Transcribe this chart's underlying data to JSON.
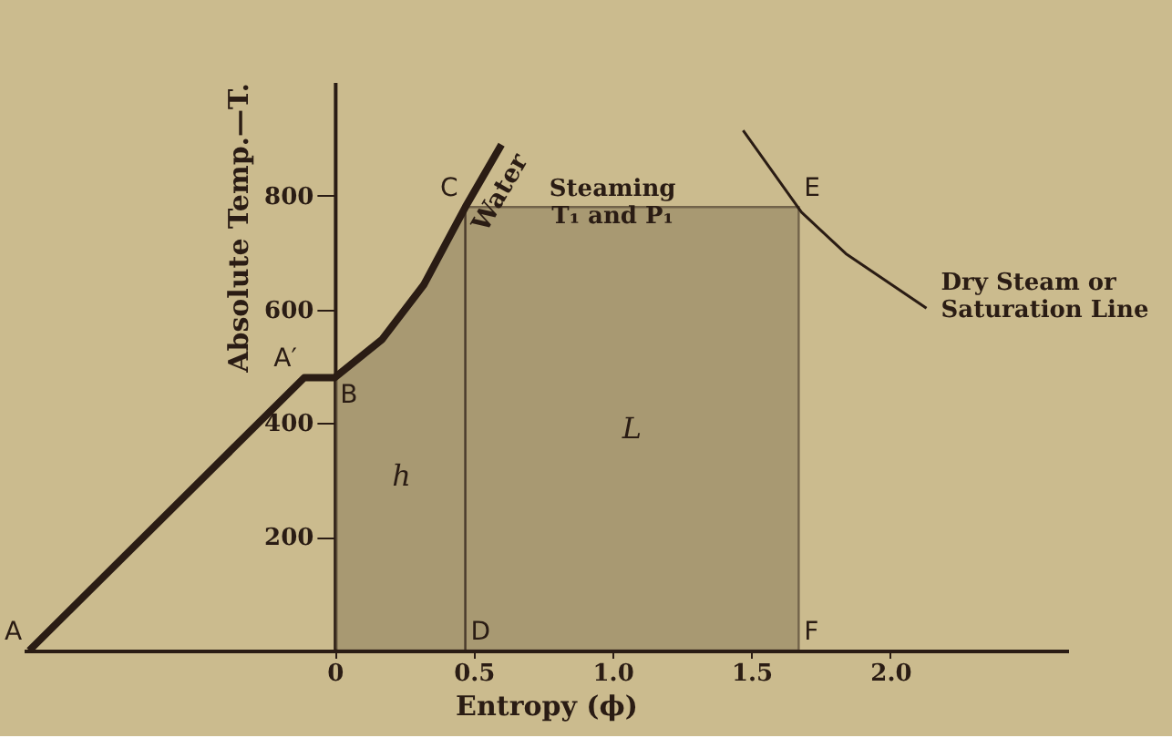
{
  "chart_data": {
    "type": "line",
    "xlabel": "Entropy (ϕ)",
    "ylabel": "Absolute Temp.—T.",
    "xlim": [
      -1.12,
      2.64
    ],
    "ylim": [
      0,
      1000
    ],
    "xticks": [
      {
        "value": 0,
        "label": "0"
      },
      0.5,
      {
        "value": 1,
        "label": "1.0"
      },
      1.5,
      {
        "value": 2,
        "label": "2.0"
      }
    ],
    "yticks": [
      200,
      400,
      600,
      800
    ],
    "grid": false,
    "marker": "none",
    "line_style": "solid",
    "series": [
      {
        "name": "h",
        "type": "area",
        "color": "#8c7e5c",
        "x": [
          0,
          0.17,
          0.32,
          0.47
        ],
        "values": [
          480,
          547,
          643,
          780
        ]
      },
      {
        "name": "L",
        "type": "area",
        "color": "#8c7e5c",
        "x": [
          0.47,
          1.67
        ],
        "values": [
          780,
          780
        ]
      },
      {
        "name": "Water",
        "color": "#2a1c14",
        "x": [
          -1.1,
          -0.11,
          0,
          0.17,
          0.32,
          0.47,
          0.6
        ],
        "values": [
          0,
          480,
          480,
          547,
          643,
          780,
          890
        ]
      },
      {
        "name": "Dry Steam or\nSaturation Line",
        "color": "#2a1c14",
        "x": [
          1.47,
          1.68,
          1.84,
          2.13
        ],
        "values": [
          915,
          771,
          698,
          602
        ]
      }
    ],
    "annotations": [
      {
        "text": "A",
        "x": -1.1,
        "y": 0
      },
      {
        "text": "A′",
        "x": -0.11,
        "y": 480
      },
      {
        "text": "B",
        "x": 0,
        "y": 480
      },
      {
        "text": "C",
        "x": 0.47,
        "y": 780
      },
      {
        "text": "D",
        "x": 0.47,
        "y": 0
      },
      {
        "text": "E",
        "x": 1.67,
        "y": 780
      },
      {
        "text": "F",
        "x": 1.67,
        "y": 0
      },
      {
        "text": "Steaming\nT₁ and P₁",
        "x": 1.0,
        "y": 780
      }
    ]
  }
}
